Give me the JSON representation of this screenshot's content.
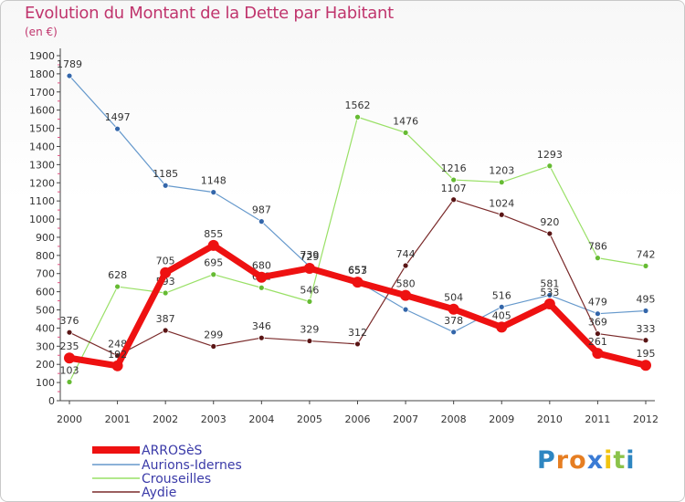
{
  "title": "Evolution du Montant de la Dette par Habitant",
  "unit": "(en €)",
  "logo": {
    "letters": [
      "P",
      "r",
      "o",
      "x",
      "i",
      "t",
      "i"
    ],
    "colors": [
      "#2e86c1",
      "#e67e22",
      "#e67e22",
      "#3a7bd5",
      "#f1c40f",
      "#8bc34a",
      "#2e86c1"
    ]
  },
  "chart_data": {
    "type": "line",
    "x": [
      "2000",
      "2001",
      "2002",
      "2003",
      "2004",
      "2005",
      "2006",
      "2007",
      "2008",
      "2009",
      "2010",
      "2011",
      "2012"
    ],
    "ylim": [
      0,
      1900
    ],
    "yticks": [
      0,
      100,
      200,
      300,
      400,
      500,
      600,
      700,
      800,
      900,
      1000,
      1100,
      1200,
      1300,
      1400,
      1500,
      1600,
      1700,
      1800,
      1900
    ],
    "grid": false,
    "legend": "bottom-left",
    "series": [
      {
        "name": "Aurions-Idernes",
        "color": "#6699cc",
        "marker": "#3366aa",
        "width": 1.2,
        "values": [
          1789,
          1497,
          1185,
          1148,
          987,
          739,
          657,
          502,
          378,
          516,
          581,
          479,
          495
        ],
        "labels": [
          "1789",
          "1497",
          "1185",
          "1148",
          "987",
          "739",
          "657",
          "",
          "378",
          "516",
          "581",
          "479",
          "495"
        ]
      },
      {
        "name": "Crouseilles",
        "color": "#99e066",
        "marker": "#66bb33",
        "width": 1.2,
        "values": [
          103,
          628,
          593,
          695,
          622,
          546,
          1562,
          1476,
          1216,
          1203,
          1293,
          786,
          742
        ],
        "labels": [
          "103",
          "628",
          "593",
          "695",
          "622",
          "546",
          "1562",
          "1476",
          "1216",
          "1203",
          "1293",
          "786",
          "742"
        ]
      },
      {
        "name": "Aydie",
        "color": "#7a2a2a",
        "marker": "#5a1515",
        "width": 1.2,
        "values": [
          376,
          248,
          387,
          299,
          346,
          329,
          312,
          744,
          1107,
          1024,
          920,
          369,
          333
        ],
        "labels": [
          "376",
          "248",
          "387",
          "299",
          "346",
          "329",
          "312",
          "744",
          "1107",
          "1024",
          "920",
          "369",
          "333"
        ]
      },
      {
        "name": "ARROSèS",
        "color": "#ee1111",
        "marker": "#ee1111",
        "width": 7,
        "values": [
          235,
          192,
          705,
          855,
          680,
          729,
          653,
          580,
          504,
          405,
          533,
          261,
          195
        ],
        "labels": [
          "235",
          "192",
          "705",
          "855",
          "680",
          "729",
          "653",
          "580",
          "504",
          "405",
          "533",
          "261",
          "195"
        ]
      }
    ]
  },
  "legend_items": [
    "ARROSèS",
    "Aurions-Idernes",
    "Crouseilles",
    "Aydie"
  ]
}
